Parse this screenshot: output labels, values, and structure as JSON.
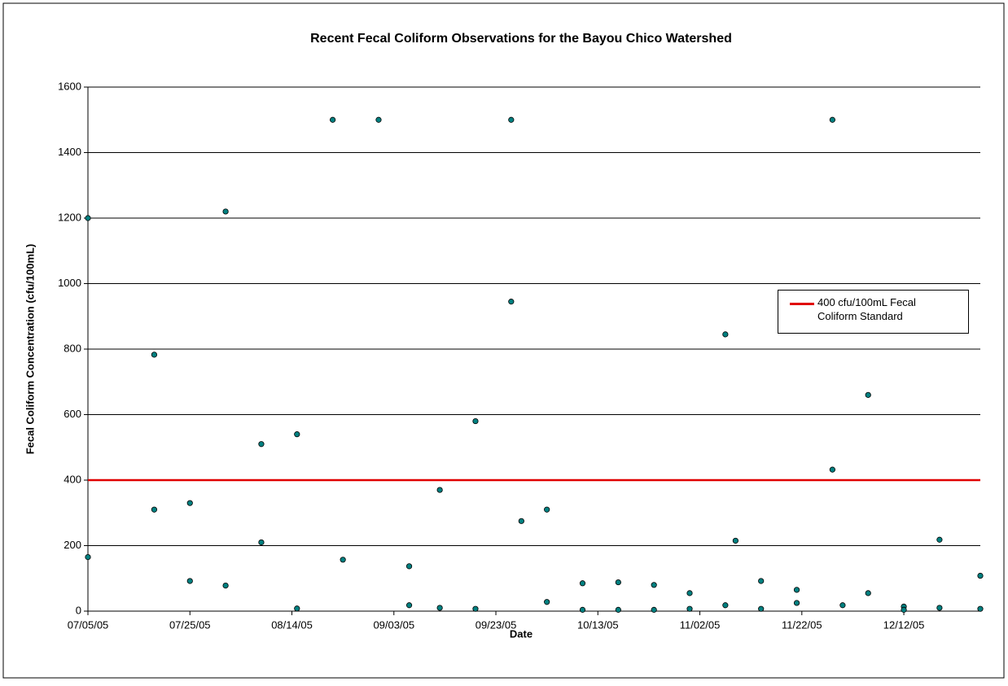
{
  "chart_data": {
    "type": "scatter",
    "title": "Recent Fecal Coliform Observations for the Bayou Chico Watershed",
    "x_label": "Date",
    "y_label": "Fecal Coliform Concentration (cfu/100mL)",
    "x": [
      "2005-07-05",
      "2005-07-05",
      "2005-07-18",
      "2005-07-18",
      "2005-07-25",
      "2005-07-25",
      "2005-08-01",
      "2005-08-01",
      "2005-08-08",
      "2005-08-08",
      "2005-08-15",
      "2005-08-15",
      "2005-08-22",
      "2005-08-24",
      "2005-08-31",
      "2005-09-06",
      "2005-09-06",
      "2005-09-12",
      "2005-09-12",
      "2005-09-19",
      "2005-09-19",
      "2005-09-26",
      "2005-09-26",
      "2005-09-28",
      "2005-10-03",
      "2005-10-03",
      "2005-10-10",
      "2005-10-10",
      "2005-10-17",
      "2005-10-17",
      "2005-10-24",
      "2005-10-24",
      "2005-10-31",
      "2005-10-31",
      "2005-11-07",
      "2005-11-07",
      "2005-11-09",
      "2005-11-14",
      "2005-11-14",
      "2005-11-21",
      "2005-11-21",
      "2005-11-28",
      "2005-11-28",
      "2005-11-30",
      "2005-12-05",
      "2005-12-05",
      "2005-12-12",
      "2005-12-12",
      "2005-12-19",
      "2005-12-19",
      "2005-12-27",
      "2005-12-27"
    ],
    "series": [
      {
        "color": "#008080",
        "values": [
          1200,
          165,
          783,
          310,
          330,
          92,
          1220,
          78,
          510,
          210,
          540,
          8,
          1500,
          157,
          1500,
          137,
          18,
          370,
          10,
          580,
          7,
          1500,
          945,
          275,
          310,
          28,
          85,
          4,
          88,
          4,
          80,
          4,
          55,
          7,
          845,
          18,
          215,
          92,
          7,
          65,
          25,
          1500,
          432,
          18,
          660,
          55,
          14,
          4,
          218,
          10,
          108,
          7
        ]
      }
    ],
    "reference_lines": [
      {
        "name": "400 cfu/100mL Fecal Coliform Standard",
        "color": "#e00000",
        "value": 400
      }
    ],
    "xlim": [
      "2005-07-05",
      "2005-12-27"
    ],
    "xticks": [
      {
        "value": "2005-07-05",
        "label": "07/05/05"
      },
      {
        "value": "2005-07-25",
        "label": "07/25/05"
      },
      {
        "value": "2005-08-14",
        "label": "08/14/05"
      },
      {
        "value": "2005-09-03",
        "label": "09/03/05"
      },
      {
        "value": "2005-09-23",
        "label": "09/23/05"
      },
      {
        "value": "2005-10-13",
        "label": "10/13/05"
      },
      {
        "value": "2005-11-02",
        "label": "11/02/05"
      },
      {
        "value": "2005-11-22",
        "label": "11/22/05"
      },
      {
        "value": "2005-12-12",
        "label": "12/12/05"
      }
    ],
    "ylim": [
      0,
      1600
    ],
    "yticks": [
      0,
      200,
      400,
      600,
      800,
      1000,
      1200,
      1400,
      1600
    ],
    "grid": true
  }
}
